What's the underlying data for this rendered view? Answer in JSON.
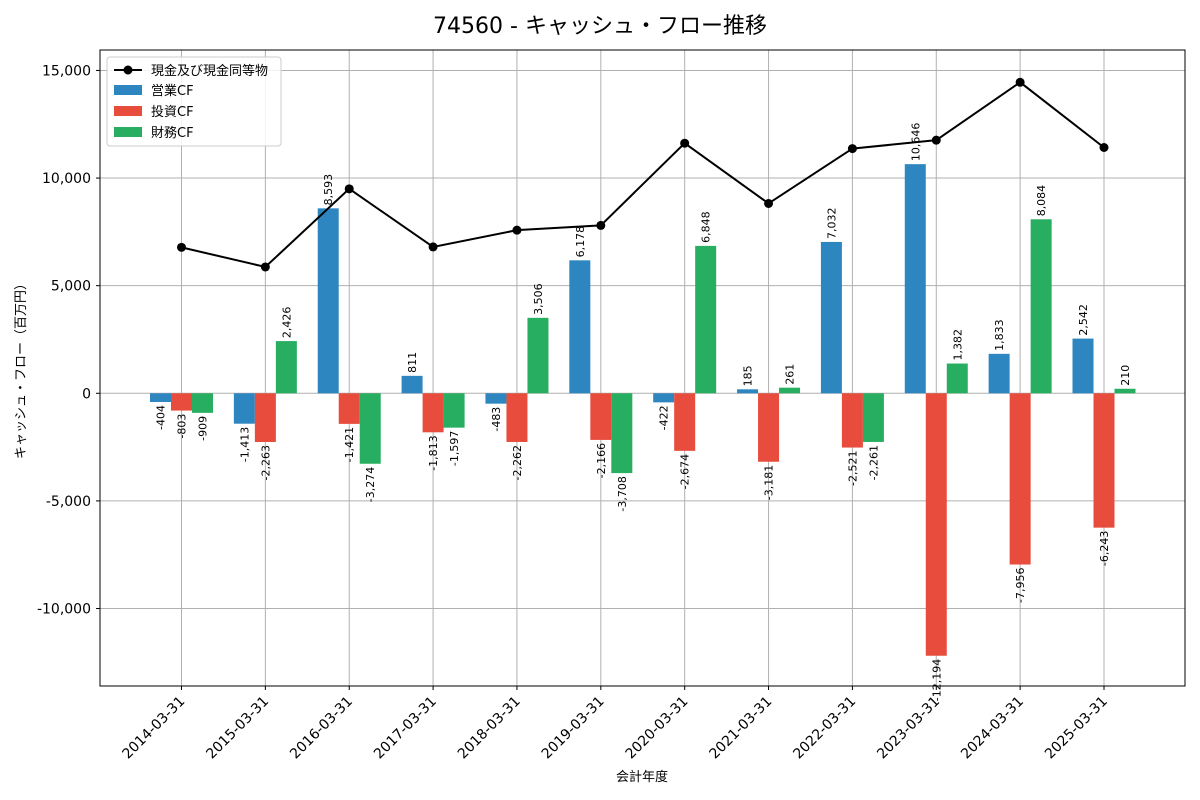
{
  "chart_data": {
    "type": "bar",
    "title": "74560 - キャッシュ・フロー推移",
    "xlabel": "会計年度",
    "ylabel": "キャッシュ・フロー（百万円）",
    "ylim": [
      -13600,
      15950
    ],
    "yticks": [
      -10000,
      -5000,
      0,
      5000,
      10000,
      15000
    ],
    "ytick_labels": [
      "-10,000",
      "-5,000",
      "0",
      "5,000",
      "10,000",
      "15,000"
    ],
    "grid": true,
    "legend_position": "top-left",
    "categories": [
      "2014-03-31",
      "2015-03-31",
      "2016-03-31",
      "2017-03-31",
      "2018-03-31",
      "2019-03-31",
      "2020-03-31",
      "2021-03-31",
      "2022-03-31",
      "2023-03-31",
      "2024-03-31",
      "2025-03-31"
    ],
    "series": [
      {
        "name": "営業CF",
        "kind": "bar",
        "color": "#2e86c1",
        "values": [
          -404,
          -1413,
          8593,
          811,
          -483,
          6178,
          -422,
          185,
          7032,
          10646,
          1833,
          2542
        ],
        "labels": [
          "-404",
          "-1,413",
          "8,593",
          "811",
          "-483",
          "6,178",
          "-422",
          "185",
          "7,032",
          "10,646",
          "1,833",
          "2,542"
        ]
      },
      {
        "name": "投資CF",
        "kind": "bar",
        "color": "#e74c3c",
        "values": [
          -803,
          -2263,
          -1421,
          -1813,
          -2262,
          -2166,
          -2674,
          -3181,
          -2521,
          -12194,
          -7956,
          -6243
        ],
        "labels": [
          "-803",
          "-2,263",
          "-1,421",
          "-1,813",
          "-2,262",
          "-2,166",
          "-2,674",
          "-3,181",
          "-2,521",
          "-12,194",
          "-7,956",
          "-6,243"
        ]
      },
      {
        "name": "財務CF",
        "kind": "bar",
        "color": "#27ae60",
        "values": [
          -909,
          2426,
          -3274,
          -1597,
          3506,
          -3708,
          6848,
          261,
          -2261,
          1382,
          8084,
          210
        ],
        "labels": [
          "-909",
          "2,426",
          "-3,274",
          "-1,597",
          "3,506",
          "-3,708",
          "6,848",
          "261",
          "-2,261",
          "1,382",
          "8,084",
          "210"
        ]
      },
      {
        "name": "現金及び現金同等物",
        "kind": "line",
        "color": "#000000",
        "values": [
          6780,
          5870,
          9500,
          6800,
          7580,
          7800,
          11620,
          8820,
          11370,
          11760,
          14450,
          11420
        ]
      }
    ]
  }
}
